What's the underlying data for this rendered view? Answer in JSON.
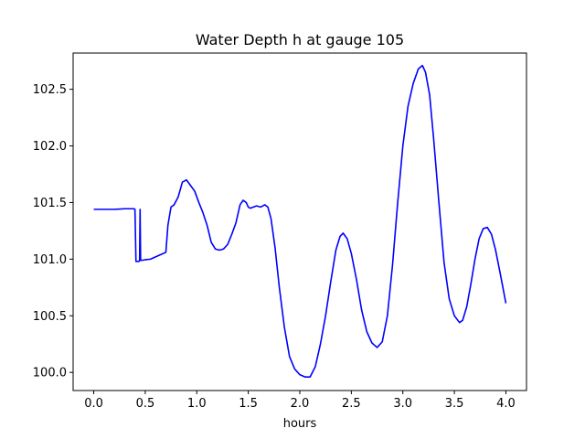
{
  "chart_data": {
    "type": "line",
    "title": "Water Depth h at gauge 105",
    "xlabel": "hours",
    "ylabel": "",
    "xlim": [
      -0.2,
      4.2
    ],
    "ylim": [
      99.84,
      102.82
    ],
    "xticks": [
      0.0,
      0.5,
      1.0,
      1.5,
      2.0,
      2.5,
      3.0,
      3.5,
      4.0
    ],
    "xtick_labels": [
      "0.0",
      "0.5",
      "1.0",
      "1.5",
      "2.0",
      "2.5",
      "3.0",
      "3.5",
      "4.0"
    ],
    "yticks": [
      100.0,
      100.5,
      101.0,
      101.5,
      102.0,
      102.5
    ],
    "ytick_labels": [
      "100.0",
      "100.5",
      "101.0",
      "101.5",
      "102.0",
      "102.5"
    ],
    "grid": false,
    "legend": "none",
    "series": [
      {
        "color": "#0000ff",
        "x": [
          0.0,
          0.1,
          0.2,
          0.3,
          0.39,
          0.4,
          0.41,
          0.44,
          0.445,
          0.45,
          0.455,
          0.47,
          0.5,
          0.55,
          0.6,
          0.65,
          0.7,
          0.72,
          0.75,
          0.78,
          0.82,
          0.86,
          0.9,
          0.94,
          0.98,
          1.02,
          1.06,
          1.1,
          1.14,
          1.18,
          1.22,
          1.26,
          1.3,
          1.34,
          1.38,
          1.42,
          1.45,
          1.48,
          1.5,
          1.52,
          1.55,
          1.58,
          1.62,
          1.66,
          1.69,
          1.72,
          1.76,
          1.8,
          1.85,
          1.9,
          1.95,
          2.0,
          2.05,
          2.1,
          2.15,
          2.2,
          2.25,
          2.3,
          2.35,
          2.39,
          2.42,
          2.46,
          2.5,
          2.55,
          2.6,
          2.65,
          2.7,
          2.75,
          2.8,
          2.85,
          2.9,
          2.95,
          3.0,
          3.05,
          3.1,
          3.15,
          3.19,
          3.22,
          3.26,
          3.3,
          3.35,
          3.4,
          3.45,
          3.5,
          3.55,
          3.58,
          3.62,
          3.66,
          3.7,
          3.74,
          3.78,
          3.82,
          3.86,
          3.9,
          3.95,
          4.0
        ],
        "y": [
          101.44,
          101.44,
          101.44,
          101.445,
          101.445,
          101.44,
          100.98,
          100.98,
          100.99,
          101.44,
          100.99,
          100.99,
          100.995,
          101.0,
          101.02,
          101.04,
          101.06,
          101.3,
          101.46,
          101.48,
          101.55,
          101.68,
          101.7,
          101.65,
          101.6,
          101.5,
          101.41,
          101.3,
          101.15,
          101.09,
          101.08,
          101.09,
          101.13,
          101.22,
          101.32,
          101.48,
          101.52,
          101.5,
          101.46,
          101.45,
          101.46,
          101.47,
          101.46,
          101.48,
          101.46,
          101.36,
          101.1,
          100.76,
          100.4,
          100.14,
          100.03,
          99.98,
          99.96,
          99.96,
          100.05,
          100.25,
          100.5,
          100.8,
          101.08,
          101.2,
          101.23,
          101.18,
          101.05,
          100.82,
          100.55,
          100.36,
          100.26,
          100.22,
          100.27,
          100.5,
          100.95,
          101.5,
          102.0,
          102.35,
          102.55,
          102.68,
          102.71,
          102.65,
          102.45,
          102.05,
          101.5,
          100.97,
          100.65,
          100.5,
          100.44,
          100.46,
          100.58,
          100.78,
          101.0,
          101.18,
          101.27,
          101.28,
          101.22,
          101.08,
          100.85,
          100.61
        ]
      }
    ]
  }
}
